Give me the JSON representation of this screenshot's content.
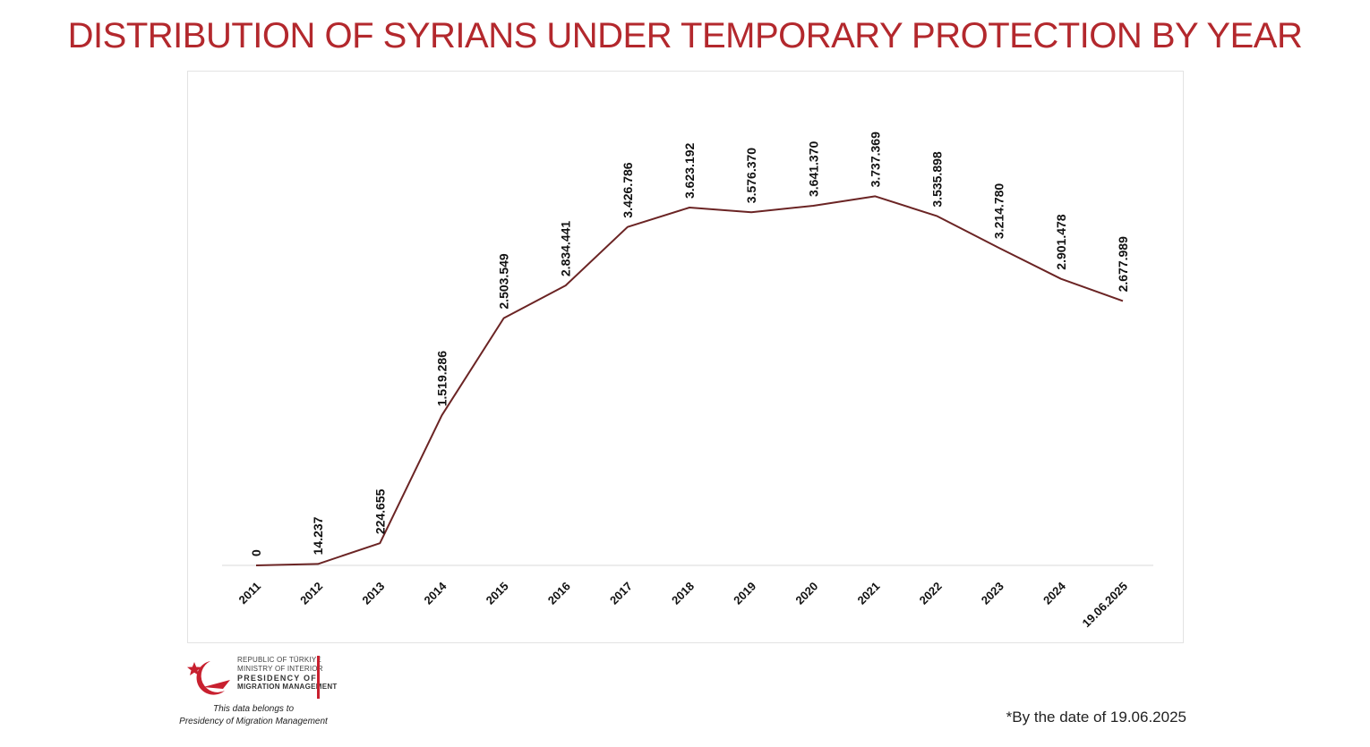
{
  "header": {
    "title": "DISTRIBUTION OF SYRIANS UNDER TEMPORARY PROTECTION BY YEAR"
  },
  "chart_data": {
    "type": "line",
    "title": "DISTRIBUTION OF SYRIANS UNDER TEMPORARY PROTECTION BY YEAR",
    "xlabel": "",
    "ylabel": "",
    "categories": [
      "2011",
      "2012",
      "2013",
      "2014",
      "2015",
      "2016",
      "2017",
      "2018",
      "2019",
      "2020",
      "2021",
      "2022",
      "2023",
      "2024",
      "19.06.2025"
    ],
    "series": [
      {
        "values": [
          0,
          14237,
          224655,
          1519286,
          2503549,
          2834441,
          3426786,
          3623192,
          3576370,
          3641370,
          3737369,
          3535898,
          3214780,
          2901478,
          2677989
        ],
        "labels": [
          "0",
          "14.237",
          "224.655",
          "1.519.286",
          "2.503.549",
          "2.834.441",
          "3.426.786",
          "3.623.192",
          "3.576.370",
          "3.641.370",
          "3.737.369",
          "3.535.898",
          "3.214.780",
          "2.901.478",
          "2.677.989"
        ],
        "color": "#6b2424"
      }
    ],
    "ylim": [
      0,
      5000000
    ],
    "grid": false,
    "legend": "none",
    "data_labels": "rotated-vertical-above-points"
  },
  "footer": {
    "org": {
      "line1": "REPUBLIC OF TÜRKIYE",
      "line2": "MINISTRY OF INTERIOR",
      "line3": "PRESIDENCY OF",
      "line4": "MIGRATION MANAGEMENT"
    },
    "ownership_line1": "This data belongs to",
    "ownership_line2": "Presidency of Migration Management",
    "date_note": "*By the date of  19.06.2025"
  },
  "colors": {
    "title": "#b3282d",
    "line": "#6b2424",
    "logo_red": "#c8202f"
  },
  "icons": {
    "logo": "star-and-crescent-emblem"
  }
}
